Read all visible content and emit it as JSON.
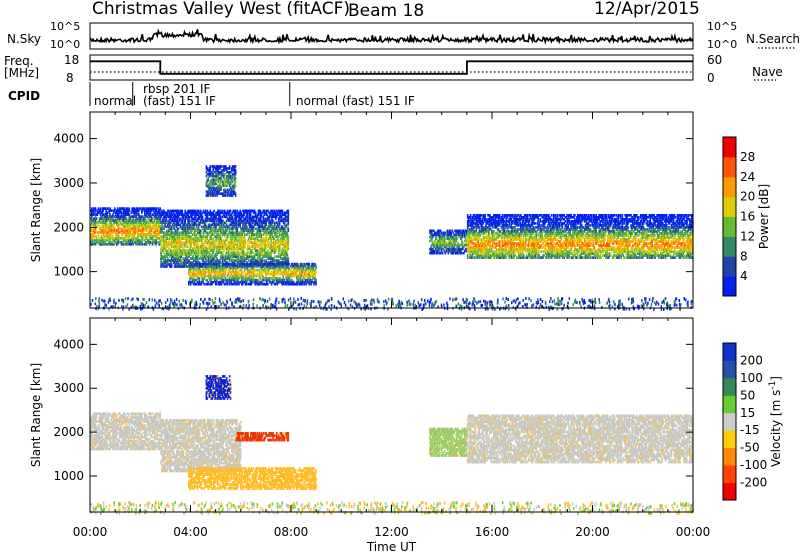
{
  "header": {
    "title": "Christmas Valley West (fitACF)",
    "beam": "Beam 18",
    "date": "12/Apr/2015"
  },
  "top_panels": {
    "nsky_label": "N.Sky",
    "nsky_ticks": [
      "10^5",
      "10^0"
    ],
    "nsearch_label": "N.Search",
    "nsearch_ticks": [
      "10^5",
      "10^0"
    ],
    "freq_label": "Freq.",
    "freq_unit": "[MHz]",
    "freq_ticks": [
      "18",
      "8"
    ],
    "nave_label": "Nave",
    "nave_ticks": [
      "60",
      "0"
    ],
    "cpid_label": "CPID",
    "cpid_segments": [
      {
        "label": "normal",
        "line2": "",
        "start_hour": 0.0,
        "end_hour": 1.7
      },
      {
        "label": "rbsp 201 IF",
        "line2": "(fast) 151 IF",
        "start_hour": 1.7,
        "end_hour": 7.95
      },
      {
        "label": "normal (fast) 151 IF",
        "line2": "",
        "start_hour": 7.95,
        "end_hour": 24.0
      }
    ],
    "freq_series": {
      "hours": [
        0,
        2.8,
        2.8,
        15.0,
        15.0,
        24
      ],
      "mhz": [
        15.5,
        15.5,
        10.5,
        10.5,
        15.5,
        15.5
      ]
    }
  },
  "chart_data": [
    {
      "type": "heatmap",
      "name": "power",
      "ylabel": "Slant Range [km]",
      "xlabel": "Time UT",
      "xlim": [
        0,
        24
      ],
      "ylim": [
        180,
        4600
      ],
      "x_ticks": [
        "00:00",
        "04:00",
        "08:00",
        "12:00",
        "16:00",
        "20:00",
        "00:00"
      ],
      "y_ticks": [
        1000,
        2000,
        3000,
        4000
      ],
      "colorbar": {
        "label": "Power [dB]",
        "ticks": [
          4,
          8,
          12,
          16,
          20,
          24,
          28
        ],
        "range": [
          0,
          32
        ],
        "colors": [
          "#0022ee",
          "#2244aa",
          "#338866",
          "#66bb33",
          "#ddcc00",
          "#ff9900",
          "#ff5500",
          "#ee0000"
        ]
      },
      "regions": [
        {
          "t0": 0.0,
          "t1": 2.8,
          "r0": 1600,
          "r1": 2450,
          "core": 1900,
          "level": 0.75
        },
        {
          "t0": 2.8,
          "t1": 7.9,
          "r0": 1100,
          "r1": 2400,
          "core": 1600,
          "level": 0.6
        },
        {
          "t0": 3.9,
          "t1": 9.0,
          "r0": 700,
          "r1": 1200,
          "core": 950,
          "level": 0.7
        },
        {
          "t0": 4.6,
          "t1": 5.8,
          "r0": 2700,
          "r1": 3400,
          "core": 3000,
          "level": 0.4
        },
        {
          "t0": 13.5,
          "t1": 15.0,
          "r0": 1400,
          "r1": 1950,
          "core": 1650,
          "level": 0.5
        },
        {
          "t0": 15.0,
          "t1": 24.0,
          "r0": 1300,
          "r1": 2300,
          "core": 1600,
          "level": 0.75
        }
      ]
    },
    {
      "type": "heatmap",
      "name": "velocity",
      "ylabel": "Slant Range [km]",
      "xlabel": "Time UT",
      "xlim": [
        0,
        24
      ],
      "ylim": [
        180,
        4600
      ],
      "x_ticks": [
        "00:00",
        "04:00",
        "08:00",
        "12:00",
        "16:00",
        "20:00",
        "00:00"
      ],
      "y_ticks": [
        1000,
        2000,
        3000,
        4000
      ],
      "colorbar": {
        "label": "Velocity [m s",
        "label_sup": "-1",
        "label_end": "]",
        "ticks": [
          "200",
          "100",
          "50",
          "15",
          "-15",
          "-50",
          "-100",
          "-200"
        ],
        "colors": [
          "#1133cc",
          "#2255aa",
          "#338855",
          "#66cc33",
          "#cccccc",
          "#ffcc00",
          "#ff8800",
          "#ff4400",
          "#ee0000"
        ]
      },
      "regions": [
        {
          "t0": 0.0,
          "t1": 2.8,
          "r0": 1600,
          "r1": 2450,
          "color": "#c8c8c0"
        },
        {
          "t0": 2.8,
          "t1": 6.0,
          "r0": 1100,
          "r1": 2300,
          "color": "#c8c8c0"
        },
        {
          "t0": 5.8,
          "t1": 7.9,
          "r0": 1800,
          "r1": 2000,
          "color": "#ee3300"
        },
        {
          "t0": 3.9,
          "t1": 9.0,
          "r0": 700,
          "r1": 1200,
          "color": "#ffbb22"
        },
        {
          "t0": 4.6,
          "t1": 5.6,
          "r0": 2750,
          "r1": 3300,
          "color": "#1122cc"
        },
        {
          "t0": 13.5,
          "t1": 15.0,
          "r0": 1450,
          "r1": 2100,
          "color": "#99cc66"
        },
        {
          "t0": 15.0,
          "t1": 24.0,
          "r0": 1300,
          "r1": 2400,
          "color": "#c8c8c0"
        }
      ]
    }
  ]
}
